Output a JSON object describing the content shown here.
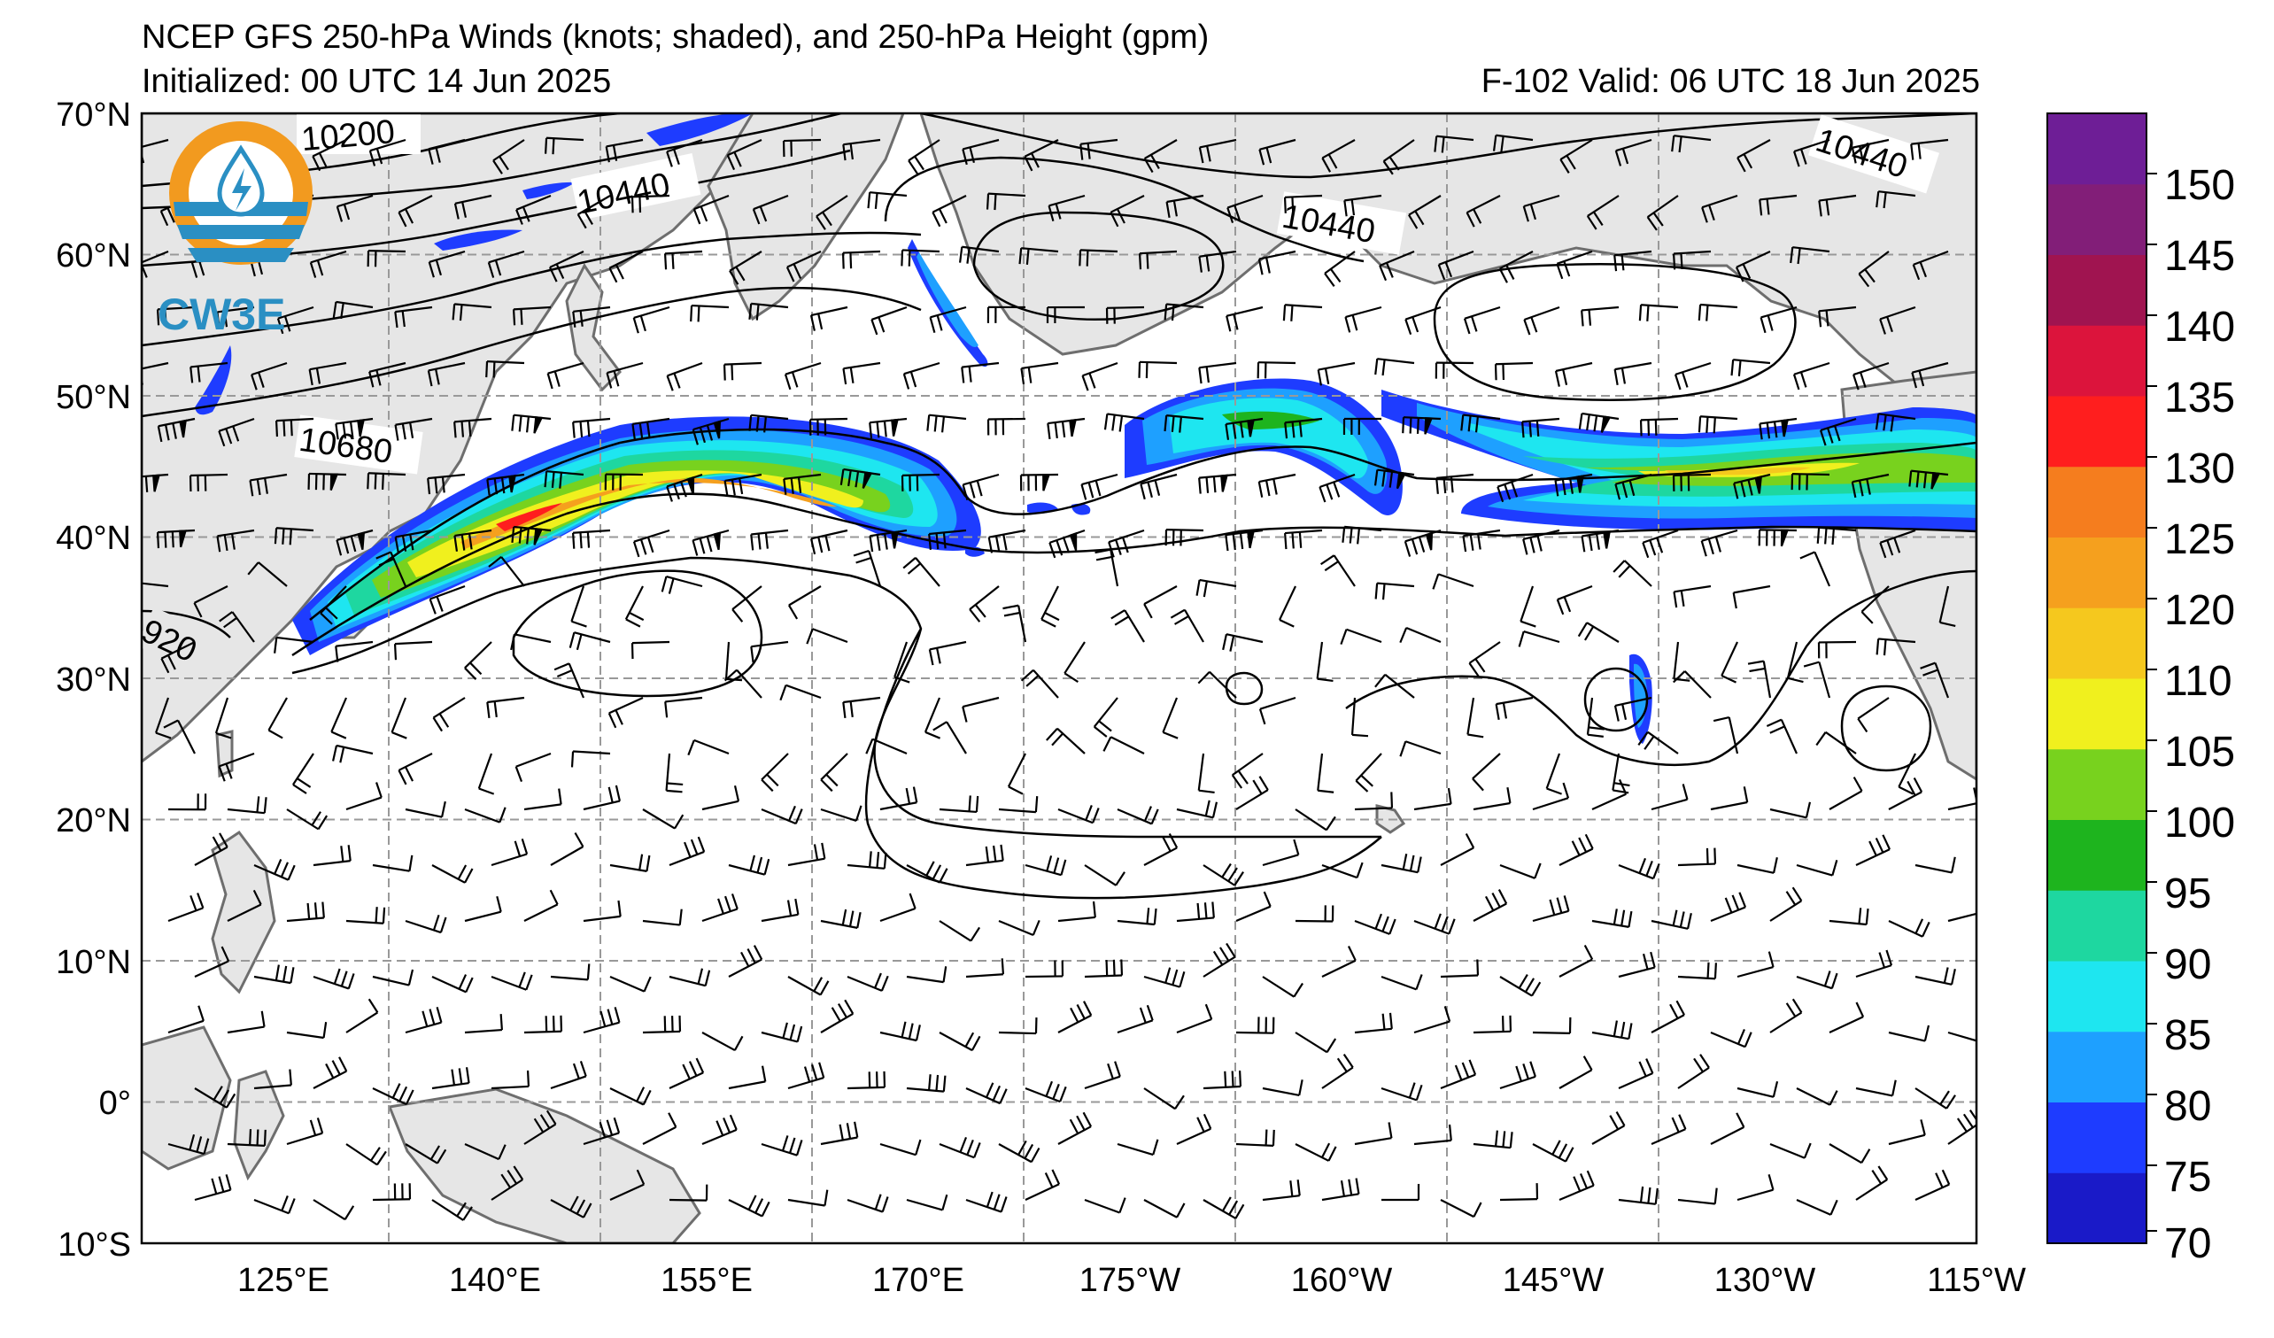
{
  "title": "NCEP GFS 250-hPa Winds (knots; shaded), and 250-hPa Height (gpm)",
  "initialized": "Initialized: 00 UTC 14 Jun 2025",
  "valid": "F-102  Valid: 06 UTC 18 Jun 2025",
  "logo": {
    "text": "CW3E",
    "ring_color": "#f29a1f",
    "wave_color": "#2a8fc3",
    "icon": "water-drop-bolt-icon"
  },
  "axes": {
    "lat_labels": [
      "70°N",
      "60°N",
      "50°N",
      "40°N",
      "30°N",
      "20°N",
      "10°N",
      "0°",
      "10°S"
    ],
    "lon_labels": [
      "125°E",
      "140°E",
      "155°E",
      "170°E",
      "175°W",
      "160°W",
      "145°W",
      "130°W",
      "115°W"
    ]
  },
  "colorbar": {
    "ticks": [
      "150",
      "145",
      "140",
      "135",
      "130",
      "125",
      "120",
      "110",
      "105",
      "100",
      "95",
      "90",
      "85",
      "80",
      "75",
      "70"
    ],
    "colors": [
      "#1a1ac8",
      "#1e3cff",
      "#1ea0ff",
      "#1ee6f0",
      "#1ed7a0",
      "#1eb41e",
      "#78d21e",
      "#f0f01e",
      "#f5c81e",
      "#f5a01e",
      "#f57d1e",
      "#ff1e1e",
      "#dc143c",
      "#a01450",
      "#821e78",
      "#6e1e96"
    ]
  },
  "contour_labels": [
    "10200",
    "10440",
    "10440",
    "10440",
    "10680",
    "920"
  ],
  "colors": {
    "land": "#e6e6e6",
    "coast": "#6e6e6e",
    "grid": "#999999",
    "contour": "#000000"
  }
}
